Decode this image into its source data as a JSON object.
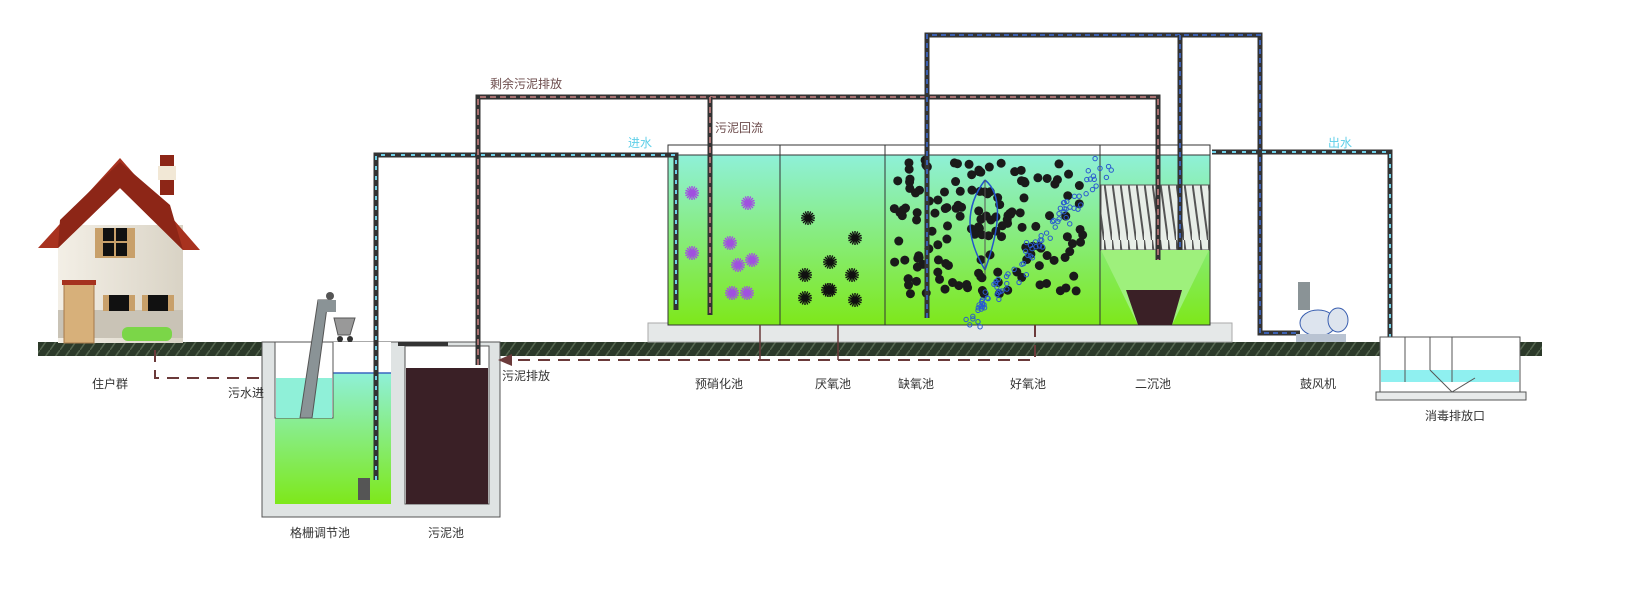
{
  "labels": {
    "residents": "住户群",
    "sewage_in": "污水进",
    "grid_tank": "格栅调节池",
    "sludge_tank": "污泥池",
    "sludge_discharge": "污泥排放",
    "excess_sludge": "剩余污泥排放",
    "sludge_return": "污泥回流",
    "water_in": "进水",
    "water_out": "出水",
    "pre_nitrification": "预硝化池",
    "anaerobic": "厌氧池",
    "anoxic": "缺氧池",
    "aerobic": "好氧池",
    "secondary_clarifier": "二沉池",
    "blower": "鼓风机",
    "disinfection_outlet": "消毒排放口"
  },
  "colors": {
    "water_top": "#8ff0d8",
    "water_bottom": "#7ee81a",
    "sludge": "#3a2026",
    "roof": "#a8321f",
    "pipe_sludge": "#7a4a4a",
    "pipe_water": "#6fd0e8",
    "pipe_air": "#3a5fb0",
    "ground": "#2c3a2a"
  }
}
